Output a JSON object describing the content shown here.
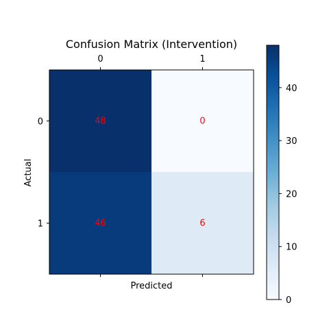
{
  "chart_data": {
    "type": "heatmap",
    "title": "Confusion Matrix (Intervention)",
    "xlabel": "Predicted",
    "ylabel": "Actual",
    "x_categories": [
      "0",
      "1"
    ],
    "y_categories": [
      "0",
      "1"
    ],
    "values": [
      [
        48,
        0
      ],
      [
        46,
        6
      ]
    ],
    "value_label_color": "#ff0000",
    "colormap": "Blues",
    "value_range": [
      0,
      48
    ],
    "colorbar_ticks": [
      0,
      10,
      20,
      30,
      40
    ],
    "x_tick_position": "top"
  }
}
